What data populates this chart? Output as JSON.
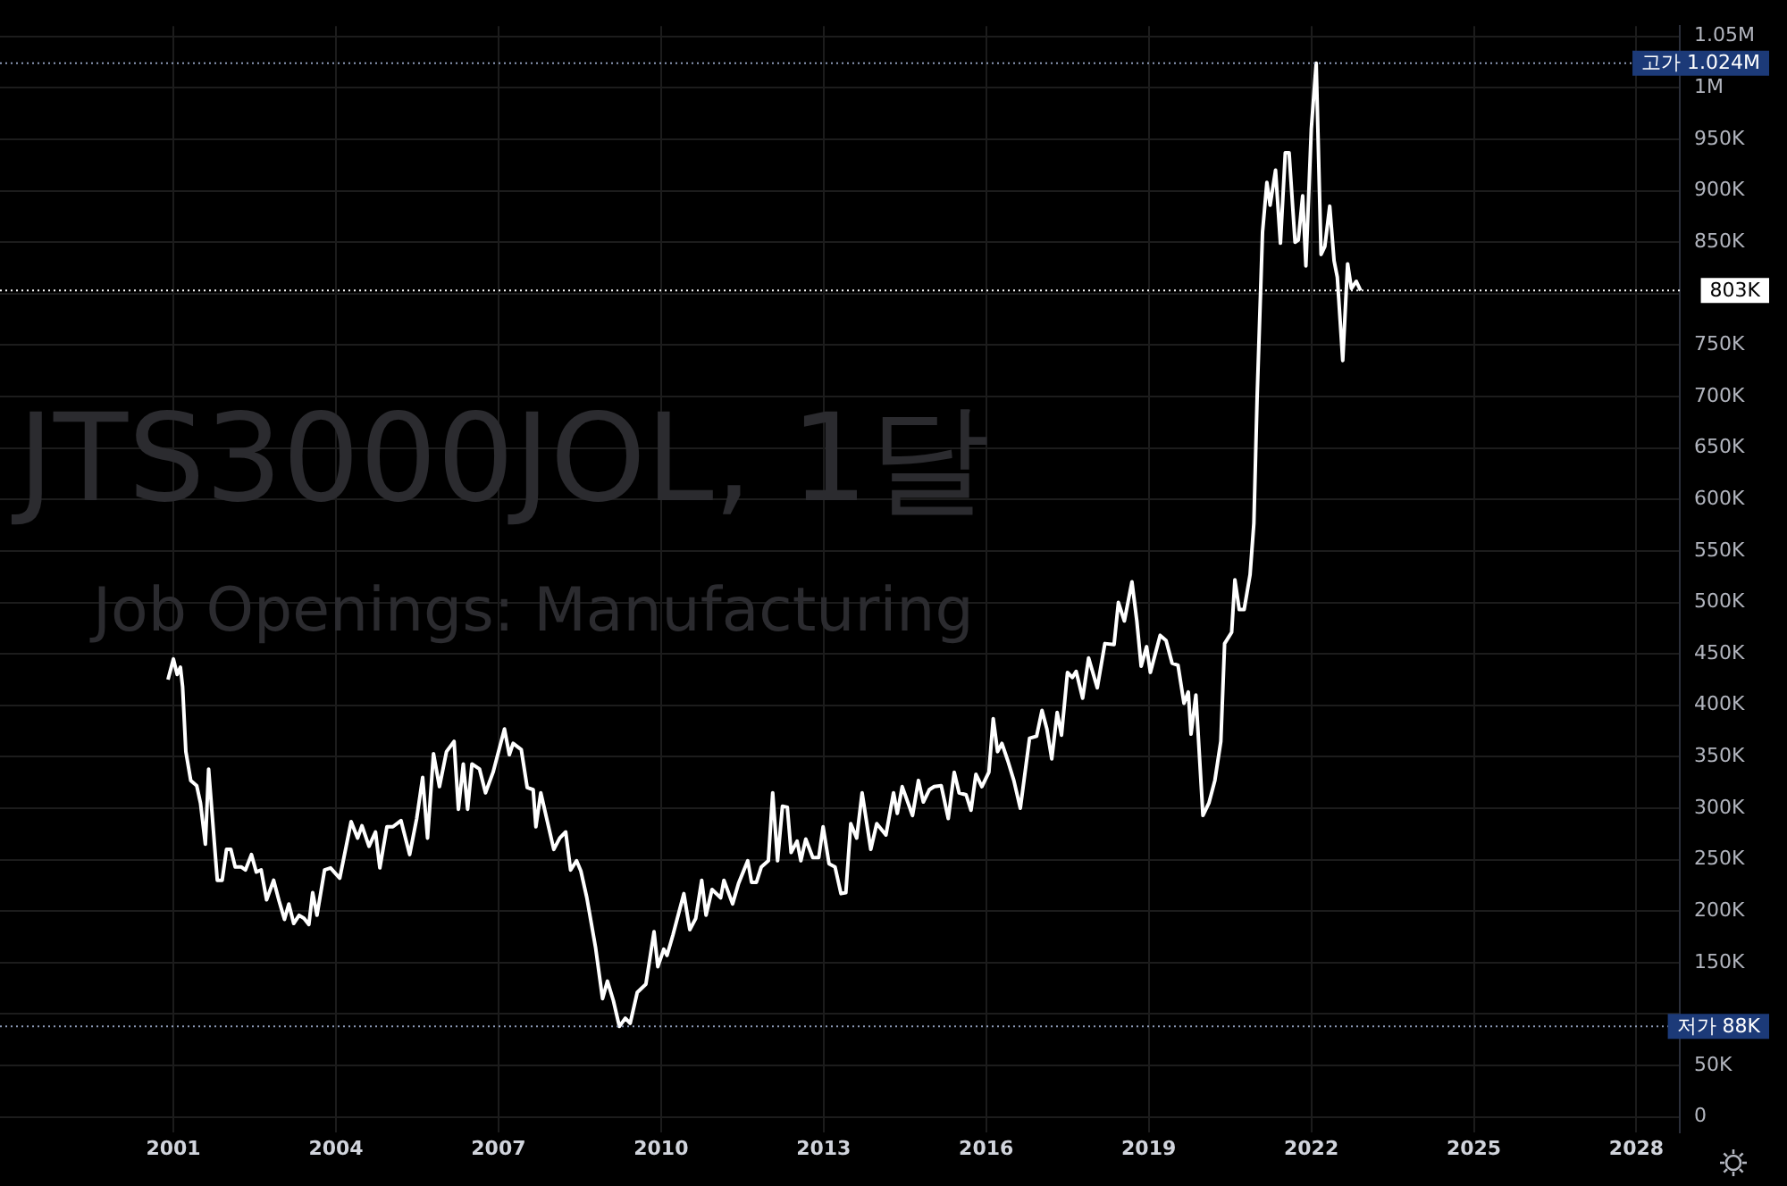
{
  "chart_data": {
    "type": "line",
    "title": "JTS3000JOL, 1달",
    "subtitle": "Job Openings: Manufacturing",
    "x": [
      2000.9,
      2001.0,
      2001.07,
      2001.13,
      2001.17,
      2001.23,
      2001.32,
      2001.43,
      2001.5,
      2001.59,
      2001.65,
      2001.81,
      2001.9,
      2001.98,
      2002.06,
      2002.14,
      2002.25,
      2002.33,
      2002.44,
      2002.53,
      2002.62,
      2002.72,
      2002.85,
      2002.95,
      2003.05,
      2003.13,
      2003.22,
      2003.32,
      2003.41,
      2003.5,
      2003.57,
      2003.65,
      2003.79,
      2003.9,
      2004.07,
      2004.28,
      2004.4,
      2004.48,
      2004.61,
      2004.73,
      2004.81,
      2004.94,
      2005.05,
      2005.2,
      2005.36,
      2005.49,
      2005.6,
      2005.69,
      2005.8,
      2005.91,
      2006.04,
      2006.18,
      2006.26,
      2006.35,
      2006.43,
      2006.51,
      2006.65,
      2006.76,
      2006.9,
      2007.11,
      2007.2,
      2007.27,
      2007.42,
      2007.53,
      2007.64,
      2007.69,
      2007.78,
      2008.02,
      2008.13,
      2008.24,
      2008.33,
      2008.44,
      2008.52,
      2008.63,
      2008.79,
      2008.92,
      2009.01,
      2009.12,
      2009.23,
      2009.34,
      2009.43,
      2009.56,
      2009.72,
      2009.87,
      2009.94,
      2010.05,
      2010.11,
      2010.22,
      2010.42,
      2010.53,
      2010.64,
      2010.75,
      2010.83,
      2010.94,
      2011.1,
      2011.16,
      2011.32,
      2011.43,
      2011.6,
      2011.67,
      2011.76,
      2011.85,
      2011.98,
      2012.06,
      2012.15,
      2012.24,
      2012.33,
      2012.4,
      2012.51,
      2012.58,
      2012.67,
      2012.8,
      2012.91,
      2012.99,
      2013.1,
      2013.21,
      2013.32,
      2013.41,
      2013.5,
      2013.61,
      2013.71,
      2013.87,
      2013.98,
      2014.15,
      2014.29,
      2014.36,
      2014.45,
      2014.64,
      2014.75,
      2014.84,
      2014.95,
      2015.04,
      2015.17,
      2015.3,
      2015.41,
      2015.5,
      2015.63,
      2015.72,
      2015.81,
      2015.92,
      2016.05,
      2016.13,
      2016.21,
      2016.29,
      2016.4,
      2016.51,
      2016.63,
      2016.8,
      2016.93,
      2017.03,
      2017.12,
      2017.21,
      2017.31,
      2017.39,
      2017.5,
      2017.59,
      2017.66,
      2017.78,
      2017.89,
      2018.05,
      2018.19,
      2018.36,
      2018.44,
      2018.55,
      2018.69,
      2018.78,
      2018.86,
      2018.96,
      2019.03,
      2019.21,
      2019.32,
      2019.43,
      2019.54,
      2019.65,
      2019.73,
      2019.78,
      2019.87,
      2020.0,
      2020.11,
      2020.22,
      2020.33,
      2020.4,
      2020.53,
      2020.59,
      2020.67,
      2020.76,
      2020.87,
      2020.94,
      2021.0,
      2021.1,
      2021.18,
      2021.24,
      2021.34,
      2021.43,
      2021.52,
      2021.59,
      2021.7,
      2021.76,
      2021.84,
      2021.9,
      2022.0,
      2022.09,
      2022.18,
      2022.25,
      2022.34,
      2022.42,
      2022.48,
      2022.58,
      2022.67,
      2022.74,
      2022.83,
      2022.91
    ],
    "series": [
      {
        "color": "#ffffff",
        "values": [
          425000,
          445000,
          430000,
          437000,
          418000,
          355000,
          327000,
          322000,
          305000,
          265000,
          338000,
          230000,
          230000,
          260000,
          260000,
          243000,
          243000,
          240000,
          255000,
          238000,
          240000,
          211000,
          230000,
          210000,
          192000,
          207000,
          188000,
          196000,
          193000,
          187000,
          218000,
          196000,
          240000,
          242000,
          232000,
          287000,
          271000,
          283000,
          263000,
          277000,
          242000,
          282000,
          282000,
          288000,
          255000,
          290000,
          330000,
          271000,
          353000,
          321000,
          355000,
          365000,
          299000,
          343000,
          299000,
          343000,
          338000,
          315000,
          335000,
          377000,
          352000,
          363000,
          357000,
          320000,
          318000,
          282000,
          315000,
          260000,
          271000,
          277000,
          240000,
          249000,
          239000,
          213000,
          165000,
          115000,
          132000,
          113000,
          88000,
          96000,
          91000,
          121000,
          129000,
          180000,
          146000,
          163000,
          157000,
          177000,
          217000,
          182000,
          193000,
          230000,
          196000,
          221000,
          213000,
          230000,
          207000,
          227000,
          249000,
          228000,
          228000,
          243000,
          249000,
          315000,
          249000,
          302000,
          301000,
          257000,
          268000,
          249000,
          270000,
          252000,
          252000,
          282000,
          246000,
          243000,
          217000,
          218000,
          285000,
          271000,
          315000,
          260000,
          285000,
          274000,
          315000,
          295000,
          321000,
          293000,
          327000,
          306000,
          318000,
          321000,
          322000,
          290000,
          335000,
          315000,
          313000,
          298000,
          333000,
          321000,
          335000,
          387000,
          355000,
          363000,
          346000,
          327000,
          300000,
          368000,
          370000,
          395000,
          377000,
          348000,
          393000,
          371000,
          432000,
          427000,
          433000,
          407000,
          446000,
          417000,
          460000,
          459000,
          500000,
          482000,
          520000,
          482000,
          438000,
          457000,
          432000,
          468000,
          463000,
          441000,
          439000,
          402000,
          413000,
          372000,
          410000,
          293000,
          305000,
          327000,
          365000,
          460000,
          471000,
          522000,
          493000,
          493000,
          527000,
          577000,
          699000,
          860000,
          908000,
          886000,
          920000,
          849000,
          937000,
          937000,
          850000,
          852000,
          895000,
          827000,
          960000,
          1024000,
          838000,
          846000,
          885000,
          832000,
          816000,
          735000,
          829000,
          805000,
          812000,
          803000
        ]
      }
    ],
    "xlim": [
      1997.8,
      2028.8
    ],
    "xticks": [
      2001,
      2004,
      2007,
      2010,
      2013,
      2016,
      2019,
      2022,
      2025,
      2028
    ],
    "ylim": [
      -15000,
      1060000
    ],
    "yticks": [
      0,
      {
        "value": 50000,
        "label": "50K"
      },
      {
        "value": 100000,
        "label": null
      },
      {
        "value": 150000,
        "label": "150K"
      },
      {
        "value": 200000,
        "label": "200K"
      },
      {
        "value": 250000,
        "label": "250K"
      },
      {
        "value": 300000,
        "label": "300K"
      },
      {
        "value": 350000,
        "label": "350K"
      },
      {
        "value": 400000,
        "label": "400K"
      },
      {
        "value": 450000,
        "label": "450K"
      },
      {
        "value": 500000,
        "label": "500K"
      },
      {
        "value": 550000,
        "label": "550K"
      },
      {
        "value": 600000,
        "label": "600K"
      },
      {
        "value": 650000,
        "label": "650K"
      },
      {
        "value": 700000,
        "label": "700K"
      },
      {
        "value": 750000,
        "label": "750K"
      },
      {
        "value": 800000,
        "label": null
      },
      {
        "value": 850000,
        "label": "850K"
      },
      {
        "value": 900000,
        "label": "900K"
      },
      {
        "value": 950000,
        "label": "950K"
      },
      {
        "value": 1000000,
        "label": "1M"
      },
      {
        "value": 1050000,
        "label": "1.05M"
      }
    ],
    "ref_lines": [
      {
        "axis": "y",
        "value": 1024000,
        "label": "고가 1.024M",
        "color": "#8d9bb8",
        "line_style": "dotted"
      },
      {
        "axis": "y",
        "value": 803000,
        "label": "803K",
        "color": "#ffffff",
        "line_style": "dotted"
      },
      {
        "axis": "y",
        "value": 88000,
        "label": "저가 88K",
        "color": "#8d9bb8",
        "line_style": "dotted"
      }
    ],
    "grid": true
  }
}
